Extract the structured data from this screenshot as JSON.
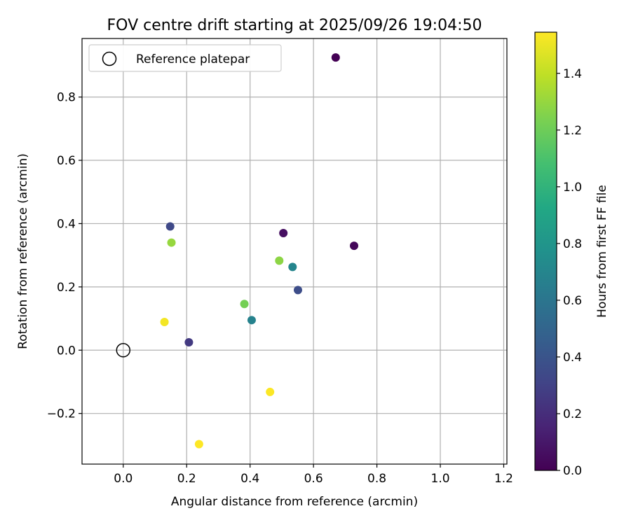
{
  "chart_data": {
    "type": "scatter",
    "title": "FOV centre drift starting at 2025/09/26 19:04:50",
    "xlabel": "Angular distance from reference (arcmin)",
    "ylabel": "Rotation from reference (arcmin)",
    "xlim": [
      -0.13,
      1.21
    ],
    "ylim": [
      -0.36,
      0.985
    ],
    "xticks": [
      0.0,
      0.2,
      0.4,
      0.6,
      0.8,
      1.0,
      1.2
    ],
    "xtick_labels": [
      "0.0",
      "0.2",
      "0.4",
      "0.6",
      "0.8",
      "1.0",
      "1.2"
    ],
    "yticks": [
      -0.2,
      0.0,
      0.2,
      0.4,
      0.6,
      0.8
    ],
    "ytick_labels": [
      "−0.2",
      "0.0",
      "0.2",
      "0.4",
      "0.6",
      "0.8"
    ],
    "grid": true,
    "legend": {
      "position": "top-left",
      "label": "Reference platepar"
    },
    "reference_point": {
      "x": 0.0,
      "y": 0.0
    },
    "colorbar": {
      "label": "Hours from first FF file",
      "colormap": "viridis",
      "range": [
        0.0,
        1.545
      ],
      "ticks": [
        0.0,
        0.2,
        0.4,
        0.6,
        0.8,
        1.0,
        1.2,
        1.4
      ],
      "tick_labels": [
        "0.0",
        "0.2",
        "0.4",
        "0.6",
        "0.8",
        "1.0",
        "1.2",
        "1.4"
      ]
    },
    "points": [
      {
        "x": 0.67,
        "y": 0.925,
        "hours": 0.0
      },
      {
        "x": 0.728,
        "y": 0.33,
        "hours": 0.03
      },
      {
        "x": 0.505,
        "y": 0.37,
        "hours": 0.06
      },
      {
        "x": 0.207,
        "y": 0.025,
        "hours": 0.26
      },
      {
        "x": 0.148,
        "y": 0.391,
        "hours": 0.34
      },
      {
        "x": 0.551,
        "y": 0.19,
        "hours": 0.36
      },
      {
        "x": 0.405,
        "y": 0.095,
        "hours": 0.68
      },
      {
        "x": 0.534,
        "y": 0.263,
        "hours": 0.7
      },
      {
        "x": 0.382,
        "y": 0.146,
        "hours": 1.22
      },
      {
        "x": 0.492,
        "y": 0.283,
        "hours": 1.28
      },
      {
        "x": 0.152,
        "y": 0.34,
        "hours": 1.3
      },
      {
        "x": 0.13,
        "y": 0.089,
        "hours": 1.52
      },
      {
        "x": 0.463,
        "y": -0.132,
        "hours": 1.54
      },
      {
        "x": 0.239,
        "y": -0.297,
        "hours": 1.545
      }
    ]
  }
}
